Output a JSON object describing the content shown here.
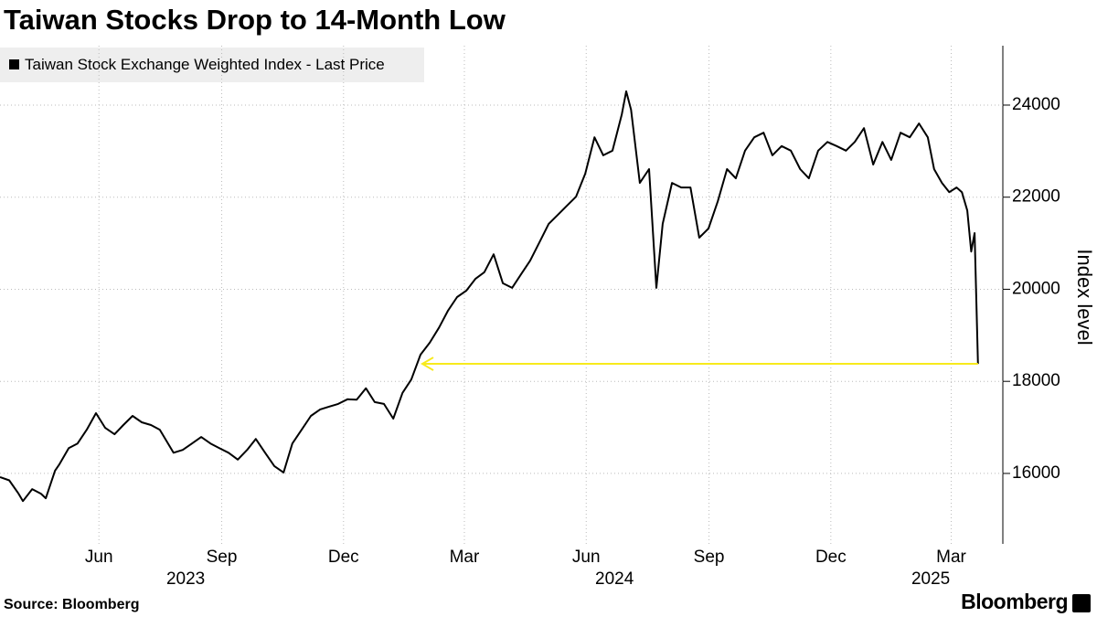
{
  "chart_data": {
    "type": "line",
    "title": "Taiwan Stocks Drop to 14-Month Low",
    "source": "Source: Bloomberg",
    "brand": "Bloomberg",
    "y_label": "Index level",
    "x": [
      2023.251,
      2023.27,
      2023.289,
      2023.298,
      2023.317,
      2023.335,
      2023.345,
      2023.364,
      2023.373,
      2023.392,
      2023.41,
      2023.429,
      2023.448,
      2023.467,
      2023.486,
      2023.504,
      2023.523,
      2023.542,
      2023.561,
      2023.579,
      2023.607,
      2023.626,
      2023.645,
      2023.664,
      2023.683,
      2023.701,
      2023.72,
      2023.739,
      2023.758,
      2023.776,
      2023.795,
      2023.814,
      2023.833,
      2023.851,
      2023.87,
      2023.889,
      2023.908,
      2023.926,
      2023.945,
      2023.964,
      2023.983,
      2024.002,
      2024.02,
      2024.039,
      2024.058,
      2024.077,
      2024.095,
      2024.114,
      2024.133,
      2024.152,
      2024.17,
      2024.189,
      2024.208,
      2024.227,
      2024.245,
      2024.264,
      2024.283,
      2024.302,
      2024.32,
      2024.339,
      2024.358,
      2024.377,
      2024.396,
      2024.414,
      2024.433,
      2024.452,
      2024.471,
      2024.489,
      2024.508,
      2024.527,
      2024.536,
      2024.546,
      2024.564,
      2024.583,
      2024.598,
      2024.611,
      2024.63,
      2024.649,
      2024.668,
      2024.686,
      2024.705,
      2024.724,
      2024.743,
      2024.761,
      2024.78,
      2024.799,
      2024.818,
      2024.836,
      2024.855,
      2024.874,
      2024.893,
      2024.911,
      2024.93,
      2024.949,
      2024.968,
      2024.987,
      2025.005,
      2025.024,
      2025.043,
      2025.062,
      2025.08,
      2025.099,
      2025.118,
      2025.137,
      2025.155,
      2025.168,
      2025.184,
      2025.199,
      2025.214,
      2025.225,
      2025.236,
      2025.244,
      2025.251,
      2025.258
    ],
    "series": [
      {
        "name": "Taiwan Stock Exchange Weighted Index - Last Price",
        "color": "#000000",
        "values": [
          15920,
          15850,
          15560,
          15400,
          15660,
          15560,
          15460,
          16060,
          16200,
          16550,
          16650,
          16950,
          17310,
          16990,
          16850,
          17050,
          17250,
          17110,
          17050,
          16950,
          16450,
          16510,
          16650,
          16790,
          16650,
          16550,
          16450,
          16300,
          16510,
          16750,
          16450,
          16160,
          16020,
          16650,
          16950,
          17250,
          17390,
          17450,
          17510,
          17610,
          17600,
          17850,
          17550,
          17510,
          17190,
          17750,
          18040,
          18580,
          18840,
          19170,
          19530,
          19830,
          19970,
          20230,
          20370,
          20760,
          20130,
          20030,
          20320,
          20620,
          21020,
          21420,
          21620,
          21810,
          22010,
          22510,
          23300,
          22910,
          23010,
          23800,
          24300,
          23900,
          22310,
          22610,
          20030,
          21420,
          22310,
          22210,
          22210,
          21120,
          21320,
          21910,
          22610,
          22410,
          23010,
          23300,
          23400,
          22910,
          23110,
          23010,
          22610,
          22410,
          23010,
          23200,
          23110,
          23010,
          23200,
          23500,
          22710,
          23200,
          22810,
          23400,
          23300,
          23600,
          23300,
          22610,
          22310,
          22110,
          22210,
          22110,
          21710,
          20820,
          21220,
          18380
        ]
      }
    ],
    "xlim": [
      2023.251,
      2025.309
    ],
    "xticks": [
      {
        "value": 2023.454,
        "label": "Jun"
      },
      {
        "value": 2023.706,
        "label": "Sep"
      },
      {
        "value": 2023.956,
        "label": "Dec"
      },
      {
        "value": 2024.204,
        "label": "Mar"
      },
      {
        "value": 2024.454,
        "label": "Jun"
      },
      {
        "value": 2024.706,
        "label": "Sep"
      },
      {
        "value": 2024.956,
        "label": "Dec"
      },
      {
        "value": 2025.203,
        "label": "Mar"
      }
    ],
    "year_labels": [
      {
        "value": 2023.632,
        "label": "2023"
      },
      {
        "value": 2024.512,
        "label": "2024"
      },
      {
        "value": 2025.161,
        "label": "2025"
      }
    ],
    "ylim": [
      14470,
      25290
    ],
    "yticks": [
      16000,
      18000,
      20000,
      22000,
      24000
    ],
    "grid": true,
    "arrow_color": "#f7ea1c"
  }
}
